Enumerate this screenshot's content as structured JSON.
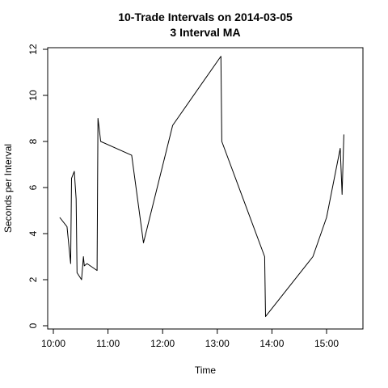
{
  "chart_data": {
    "type": "line",
    "title": "10-Trade Intervals on 2014-03-05",
    "subtitle": "3 Interval MA",
    "xlabel": "Time",
    "ylabel": "Seconds per Interval",
    "xlim": [
      "10:00",
      "15:30"
    ],
    "ylim": [
      0,
      12
    ],
    "x_ticks": [
      "10:00",
      "11:00",
      "12:00",
      "13:00",
      "14:00",
      "15:00"
    ],
    "y_ticks": [
      0,
      2,
      4,
      6,
      8,
      10,
      12
    ],
    "grid": false,
    "series": [
      {
        "color": "#000000",
        "x": [
          "10:07",
          "10:15",
          "10:19",
          "10:20",
          "10:23",
          "10:25",
          "10:26",
          "10:31",
          "10:33",
          "10:34",
          "10:37",
          "10:48",
          "10:49",
          "10:52",
          "11:26",
          "11:39",
          "12:11",
          "13:04",
          "13:05",
          "13:52",
          "13:53",
          "14:45",
          "15:00",
          "15:15",
          "15:17",
          "15:19"
        ],
        "values": [
          4.7,
          4.3,
          2.7,
          6.4,
          6.7,
          5.5,
          2.3,
          2.0,
          3.0,
          2.6,
          2.7,
          2.4,
          9.0,
          8.0,
          7.4,
          3.6,
          8.7,
          11.7,
          8.0,
          3.0,
          0.4,
          3.0,
          4.7,
          7.7,
          5.7,
          8.3
        ]
      }
    ]
  }
}
